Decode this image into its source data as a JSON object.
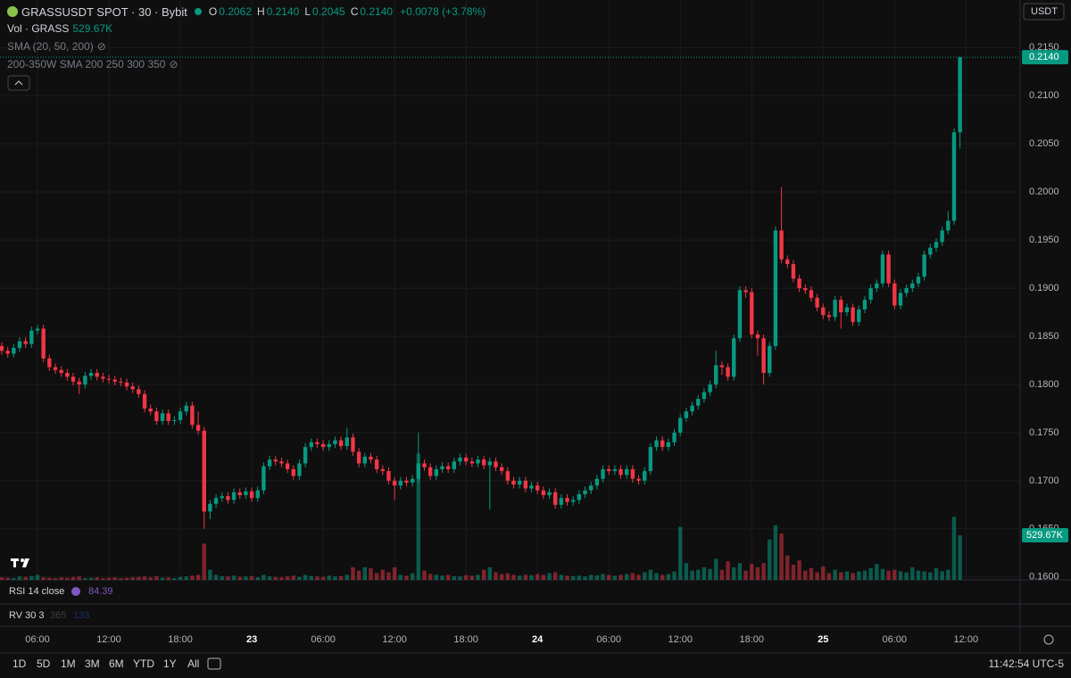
{
  "legend": {
    "title": "GRASSUSDT SPOT · 30 · Bybit",
    "ohlc": [
      {
        "key": "O",
        "value": "0.2062"
      },
      {
        "key": "H",
        "value": "0.2140"
      },
      {
        "key": "L",
        "value": "0.2045"
      },
      {
        "key": "C",
        "value": "0.2140"
      }
    ],
    "change": "+0.0078 (+3.78%)"
  },
  "indicators": {
    "vol": "Vol · GRASS",
    "vol_value": "529.67K",
    "sma": "SMA (20, 50, 200)",
    "sma_w": "200-350W SMA 200 250 300 350"
  },
  "currency": "USDT",
  "panes": {
    "rsi": "RSI 14 close",
    "rsi_value": "84.39",
    "rv": "RV 30 3",
    "rv_a": "365",
    "rv_b": "133"
  },
  "ranges": [
    "1D",
    "5D",
    "1M",
    "3M",
    "6M",
    "YTD",
    "1Y",
    "All"
  ],
  "clock": "11:42:54 UTC-5",
  "chart_data": {
    "type": "candlestick",
    "up_color": "#089981",
    "down_color": "#f23645",
    "grid": true,
    "ylim": [
      0.1597,
      0.2192
    ],
    "xlim": [
      -0.3,
      171.1
    ],
    "yticks": [
      {
        "value": 0.215,
        "label": "0.2150"
      },
      {
        "value": 0.21,
        "label": "0.2100"
      },
      {
        "value": 0.205,
        "label": "0.2050"
      },
      {
        "value": 0.2,
        "label": "0.2000"
      },
      {
        "value": 0.195,
        "label": "0.1950"
      },
      {
        "value": 0.19,
        "label": "0.1900"
      },
      {
        "value": 0.185,
        "label": "0.1850"
      },
      {
        "value": 0.18,
        "label": "0.1800"
      },
      {
        "value": 0.175,
        "label": "0.1750"
      },
      {
        "value": 0.17,
        "label": "0.1700"
      },
      {
        "value": 0.165,
        "label": "0.1650"
      },
      {
        "value": 0.16,
        "label": "0.1600"
      }
    ],
    "xticks": [
      {
        "value": 6,
        "label": "06:00"
      },
      {
        "value": 18,
        "label": "12:00"
      },
      {
        "value": 30,
        "label": "18:00"
      },
      {
        "value": 42,
        "label": "23"
      },
      {
        "value": 54,
        "label": "06:00"
      },
      {
        "value": 66,
        "label": "12:00"
      },
      {
        "value": 78,
        "label": "18:00"
      },
      {
        "value": 90,
        "label": "24"
      },
      {
        "value": 102,
        "label": "06:00"
      },
      {
        "value": 114,
        "label": "12:00"
      },
      {
        "value": 126,
        "label": "18:00"
      },
      {
        "value": 138,
        "label": "25"
      },
      {
        "value": 150,
        "label": "06:00"
      },
      {
        "value": 162,
        "label": "12:00"
      }
    ],
    "last_price_label": "0.2140",
    "open": [
      0.184,
      0.1835,
      0.1832,
      0.1838,
      0.1845,
      0.1842,
      0.1856,
      0.1858,
      0.1827,
      0.1818,
      0.1815,
      0.1812,
      0.1808,
      0.1803,
      0.18,
      0.1809,
      0.1812,
      0.1808,
      0.1806,
      0.1805,
      0.1803,
      0.1802,
      0.1798,
      0.1795,
      0.179,
      0.1775,
      0.1772,
      0.1762,
      0.177,
      0.1762,
      0.1763,
      0.1772,
      0.1778,
      0.1758,
      0.1752,
      0.1668,
      0.1676,
      0.1682,
      0.1684,
      0.168,
      0.1688,
      0.1685,
      0.1689,
      0.1682,
      0.169,
      0.1715,
      0.1722,
      0.172,
      0.1718,
      0.1712,
      0.1705,
      0.1718,
      0.1735,
      0.174,
      0.1738,
      0.1735,
      0.1738,
      0.1742,
      0.1736,
      0.1745,
      0.173,
      0.1718,
      0.1725,
      0.1722,
      0.1712,
      0.171,
      0.17,
      0.1695,
      0.17,
      0.1698,
      0.1702,
      0.1718,
      0.1714,
      0.1705,
      0.1712,
      0.1715,
      0.1712,
      0.172,
      0.1724,
      0.172,
      0.1718,
      0.1722,
      0.1716,
      0.172,
      0.1714,
      0.171,
      0.17,
      0.1696,
      0.17,
      0.1692,
      0.1695,
      0.169,
      0.1685,
      0.1688,
      0.1675,
      0.1682,
      0.1678,
      0.168,
      0.1686,
      0.169,
      0.1695,
      0.1702,
      0.1712,
      0.171,
      0.1712,
      0.1706,
      0.1712,
      0.1702,
      0.17,
      0.171,
      0.1735,
      0.1742,
      0.1735,
      0.174,
      0.175,
      0.1765,
      0.1772,
      0.1778,
      0.1785,
      0.1792,
      0.18,
      0.182,
      0.1818,
      0.1808,
      0.1848,
      0.1898,
      0.1896,
      0.1852,
      0.1848,
      0.1812,
      0.184,
      0.196,
      0.193,
      0.1925,
      0.191,
      0.19,
      0.1898,
      0.189,
      0.188,
      0.1872,
      0.187,
      0.1888,
      0.1875,
      0.188,
      0.1865,
      0.1878,
      0.1888,
      0.19,
      0.1905,
      0.1935,
      0.1905,
      0.1882,
      0.1895,
      0.19,
      0.1905,
      0.1912,
      0.1935,
      0.1942,
      0.1948,
      0.196,
      0.197,
      0.2062
    ],
    "high": [
      0.1844,
      0.1839,
      0.1842,
      0.1849,
      0.1849,
      0.186,
      0.1862,
      0.1862,
      0.1831,
      0.1822,
      0.1819,
      0.1816,
      0.1812,
      0.1807,
      0.1813,
      0.1816,
      0.1816,
      0.1812,
      0.181,
      0.1809,
      0.1807,
      0.1806,
      0.1802,
      0.1799,
      0.1794,
      0.1779,
      0.1776,
      0.1774,
      0.1774,
      0.1767,
      0.1776,
      0.1782,
      0.1782,
      0.1772,
      0.1756,
      0.168,
      0.1686,
      0.1688,
      0.1688,
      0.1692,
      0.1692,
      0.1693,
      0.1693,
      0.1694,
      0.1719,
      0.1726,
      0.1726,
      0.1724,
      0.1722,
      0.1716,
      0.1722,
      0.1739,
      0.1744,
      0.1744,
      0.1742,
      0.1742,
      0.1746,
      0.1746,
      0.1755,
      0.1749,
      0.1734,
      0.1729,
      0.1729,
      0.1726,
      0.1716,
      0.1714,
      0.1704,
      0.1704,
      0.1704,
      0.1706,
      0.175,
      0.1722,
      0.1718,
      0.1716,
      0.1719,
      0.1719,
      0.1724,
      0.1728,
      0.1728,
      0.1724,
      0.1726,
      0.1726,
      0.1724,
      0.1724,
      0.1718,
      0.1714,
      0.1704,
      0.1704,
      0.1704,
      0.1699,
      0.1699,
      0.1694,
      0.1692,
      0.1692,
      0.1686,
      0.1686,
      0.1684,
      0.169,
      0.1694,
      0.1699,
      0.1706,
      0.1716,
      0.1716,
      0.1716,
      0.1716,
      0.1716,
      0.1716,
      0.1706,
      0.1714,
      0.1739,
      0.1746,
      0.1746,
      0.1744,
      0.1754,
      0.1769,
      0.1776,
      0.1782,
      0.1789,
      0.1796,
      0.1804,
      0.1835,
      0.1824,
      0.1822,
      0.1852,
      0.1902,
      0.1902,
      0.19,
      0.1856,
      0.1852,
      0.1844,
      0.1964,
      0.2005,
      0.1934,
      0.1929,
      0.1914,
      0.1904,
      0.1902,
      0.1894,
      0.1884,
      0.1876,
      0.1892,
      0.1892,
      0.1884,
      0.1884,
      0.1882,
      0.1892,
      0.1904,
      0.1909,
      0.1939,
      0.1939,
      0.1909,
      0.1899,
      0.1904,
      0.1909,
      0.1916,
      0.1939,
      0.1946,
      0.1952,
      0.1964,
      0.198,
      0.2066,
      0.214
    ],
    "low": [
      0.1831,
      0.1828,
      0.1828,
      0.1834,
      0.1838,
      0.1838,
      0.1852,
      0.1823,
      0.1814,
      0.1811,
      0.1808,
      0.1804,
      0.1799,
      0.179,
      0.1796,
      0.1805,
      0.1804,
      0.1802,
      0.1801,
      0.1799,
      0.1798,
      0.1794,
      0.1791,
      0.1786,
      0.1771,
      0.1768,
      0.1758,
      0.1758,
      0.1758,
      0.1758,
      0.1759,
      0.1768,
      0.1754,
      0.1748,
      0.165,
      0.166,
      0.1672,
      0.1678,
      0.1676,
      0.1676,
      0.1681,
      0.1681,
      0.1678,
      0.1678,
      0.1686,
      0.1711,
      0.1716,
      0.1714,
      0.1708,
      0.1701,
      0.1701,
      0.1714,
      0.1731,
      0.1734,
      0.1731,
      0.1731,
      0.1734,
      0.1732,
      0.1732,
      0.1726,
      0.1714,
      0.1714,
      0.1718,
      0.1708,
      0.1706,
      0.1696,
      0.168,
      0.1691,
      0.1694,
      0.1694,
      0.1698,
      0.171,
      0.1701,
      0.1701,
      0.1708,
      0.1708,
      0.1708,
      0.1716,
      0.1716,
      0.1714,
      0.1714,
      0.1712,
      0.167,
      0.171,
      0.1706,
      0.1696,
      0.1692,
      0.1692,
      0.1688,
      0.1688,
      0.1686,
      0.1681,
      0.1681,
      0.1671,
      0.1671,
      0.1674,
      0.1674,
      0.1676,
      0.1682,
      0.1686,
      0.1691,
      0.1698,
      0.1706,
      0.1706,
      0.1702,
      0.1702,
      0.1698,
      0.1696,
      0.1696,
      0.1706,
      0.1731,
      0.1731,
      0.1731,
      0.1736,
      0.1746,
      0.1761,
      0.1768,
      0.1774,
      0.1781,
      0.1788,
      0.1796,
      0.181,
      0.1804,
      0.1804,
      0.1844,
      0.189,
      0.1848,
      0.183,
      0.18,
      0.1808,
      0.1836,
      0.1926,
      0.1921,
      0.1906,
      0.1896,
      0.1894,
      0.1886,
      0.1876,
      0.1868,
      0.1866,
      0.1866,
      0.1858,
      0.1871,
      0.1861,
      0.1861,
      0.1874,
      0.1884,
      0.1896,
      0.1901,
      0.1901,
      0.1878,
      0.1878,
      0.1891,
      0.1896,
      0.1901,
      0.1908,
      0.1931,
      0.1938,
      0.1944,
      0.1956,
      0.1966,
      0.2045
    ],
    "close": [
      0.1835,
      0.1832,
      0.1838,
      0.1845,
      0.1842,
      0.1856,
      0.1858,
      0.1827,
      0.1818,
      0.1815,
      0.1812,
      0.1808,
      0.1803,
      0.18,
      0.1809,
      0.1812,
      0.1808,
      0.1806,
      0.1805,
      0.1803,
      0.1802,
      0.1798,
      0.1795,
      0.179,
      0.1775,
      0.1772,
      0.1762,
      0.177,
      0.1762,
      0.1763,
      0.1772,
      0.1778,
      0.1758,
      0.1752,
      0.1668,
      0.1676,
      0.1682,
      0.1684,
      0.168,
      0.1688,
      0.1685,
      0.1689,
      0.1682,
      0.169,
      0.1715,
      0.1722,
      0.172,
      0.1718,
      0.1712,
      0.1705,
      0.1718,
      0.1735,
      0.174,
      0.1738,
      0.1735,
      0.1738,
      0.1742,
      0.1736,
      0.1745,
      0.173,
      0.1718,
      0.1725,
      0.1722,
      0.1712,
      0.171,
      0.17,
      0.1695,
      0.17,
      0.1698,
      0.1702,
      0.1718,
      0.1714,
      0.1705,
      0.1712,
      0.1715,
      0.1712,
      0.172,
      0.1724,
      0.172,
      0.1718,
      0.1722,
      0.1716,
      0.172,
      0.1714,
      0.171,
      0.17,
      0.1696,
      0.17,
      0.1692,
      0.1695,
      0.169,
      0.1685,
      0.1688,
      0.1675,
      0.1682,
      0.1678,
      0.168,
      0.1686,
      0.169,
      0.1695,
      0.1702,
      0.1712,
      0.171,
      0.1712,
      0.1706,
      0.1712,
      0.1702,
      0.17,
      0.171,
      0.1735,
      0.1742,
      0.1735,
      0.174,
      0.175,
      0.1765,
      0.1772,
      0.1778,
      0.1785,
      0.1792,
      0.18,
      0.182,
      0.1818,
      0.1808,
      0.1848,
      0.1898,
      0.1896,
      0.1852,
      0.1848,
      0.1812,
      0.184,
      0.196,
      0.193,
      0.1925,
      0.191,
      0.19,
      0.1898,
      0.189,
      0.188,
      0.1872,
      0.187,
      0.1888,
      0.1875,
      0.188,
      0.1865,
      0.1878,
      0.1888,
      0.19,
      0.1905,
      0.1935,
      0.1905,
      0.1882,
      0.1895,
      0.19,
      0.1905,
      0.1912,
      0.1935,
      0.1942,
      0.1948,
      0.196,
      0.197,
      0.2062,
      0.214
    ],
    "volume": {
      "up_color": "rgba(8,153,129,0.55)",
      "down_color": "rgba(242,54,69,0.5)",
      "current_label": "529.67K",
      "values": [
        30000,
        25000,
        20000,
        40000,
        35000,
        45000,
        60000,
        30000,
        25000,
        20000,
        30000,
        25000,
        35000,
        40000,
        20000,
        25000,
        30000,
        20000,
        25000,
        30000,
        20000,
        25000,
        30000,
        35000,
        40000,
        30000,
        45000,
        25000,
        30000,
        20000,
        35000,
        40000,
        50000,
        60000,
        430000,
        120000,
        60000,
        45000,
        40000,
        50000,
        35000,
        40000,
        45000,
        30000,
        60000,
        40000,
        35000,
        30000,
        40000,
        50000,
        35000,
        60000,
        45000,
        40000,
        35000,
        50000,
        40000,
        45000,
        60000,
        150000,
        110000,
        150000,
        140000,
        80000,
        120000,
        90000,
        150000,
        60000,
        50000,
        80000,
        1500000,
        110000,
        70000,
        60000,
        50000,
        60000,
        45000,
        40000,
        55000,
        50000,
        60000,
        120000,
        150000,
        90000,
        70000,
        80000,
        60000,
        50000,
        60000,
        55000,
        70000,
        60000,
        80000,
        90000,
        60000,
        50000,
        45000,
        50000,
        40000,
        60000,
        55000,
        70000,
        60000,
        50000,
        60000,
        70000,
        80000,
        60000,
        90000,
        120000,
        80000,
        60000,
        70000,
        100000,
        630000,
        200000,
        110000,
        120000,
        150000,
        130000,
        250000,
        120000,
        220000,
        150000,
        200000,
        110000,
        190000,
        150000,
        200000,
        480000,
        650000,
        550000,
        290000,
        180000,
        230000,
        110000,
        140000,
        90000,
        160000,
        80000,
        120000,
        90000,
        100000,
        80000,
        100000,
        110000,
        140000,
        190000,
        130000,
        110000,
        120000,
        100000,
        90000,
        150000,
        110000,
        100000,
        90000,
        140000,
        100000,
        120000,
        750000,
        529670
      ]
    }
  }
}
